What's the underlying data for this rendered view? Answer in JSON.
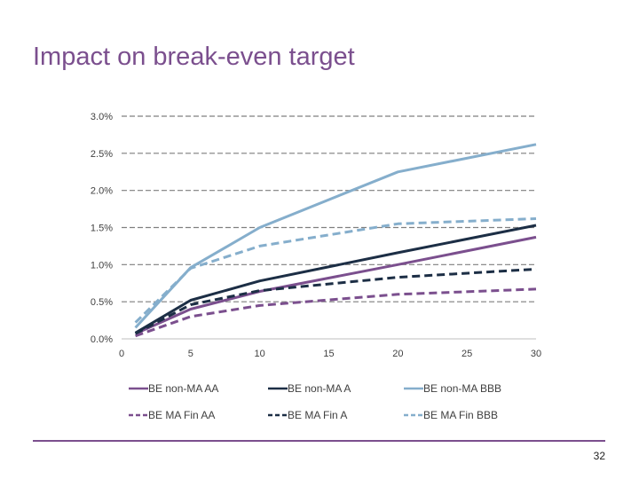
{
  "slide": {
    "title": "Impact on break-even target",
    "page_number": "32",
    "colors": {
      "title": "#7b4f8e",
      "footer_rule": "#7b4f8e"
    }
  },
  "chart_data": {
    "type": "line",
    "title": "",
    "xlabel": "",
    "ylabel": "",
    "xlim": [
      0,
      30
    ],
    "ylim": [
      0,
      3.0
    ],
    "x_ticks": [
      "0",
      "5",
      "10",
      "15",
      "20",
      "25",
      "30"
    ],
    "y_ticks": [
      "0.0%",
      "0.5%",
      "1.0%",
      "1.5%",
      "2.0%",
      "2.5%",
      "3.0%"
    ],
    "grid": true,
    "legend_position": "bottom",
    "x": [
      1,
      5,
      10,
      20,
      30
    ],
    "series": [
      {
        "name": "BE non-MA AA",
        "color": "#7b4f8e",
        "dash": "solid",
        "values": [
          0.07,
          0.4,
          0.64,
          1.0,
          1.37
        ]
      },
      {
        "name": "BE non-MA A",
        "color": "#1c2e45",
        "dash": "solid",
        "values": [
          0.08,
          0.52,
          0.78,
          1.16,
          1.53
        ]
      },
      {
        "name": "BE non-MA BBB",
        "color": "#85aecc",
        "dash": "solid",
        "values": [
          0.15,
          0.96,
          1.5,
          2.25,
          2.62
        ]
      },
      {
        "name": "BE MA Fin AA",
        "color": "#7b4f8e",
        "dash": "dashed",
        "values": [
          0.04,
          0.3,
          0.45,
          0.6,
          0.67
        ]
      },
      {
        "name": "BE MA Fin A",
        "color": "#1c2e45",
        "dash": "dashed",
        "values": [
          0.07,
          0.46,
          0.65,
          0.83,
          0.94
        ]
      },
      {
        "name": "BE MA Fin BBB",
        "color": "#85aecc",
        "dash": "dashed",
        "values": [
          0.22,
          0.95,
          1.25,
          1.55,
          1.62
        ]
      }
    ]
  }
}
